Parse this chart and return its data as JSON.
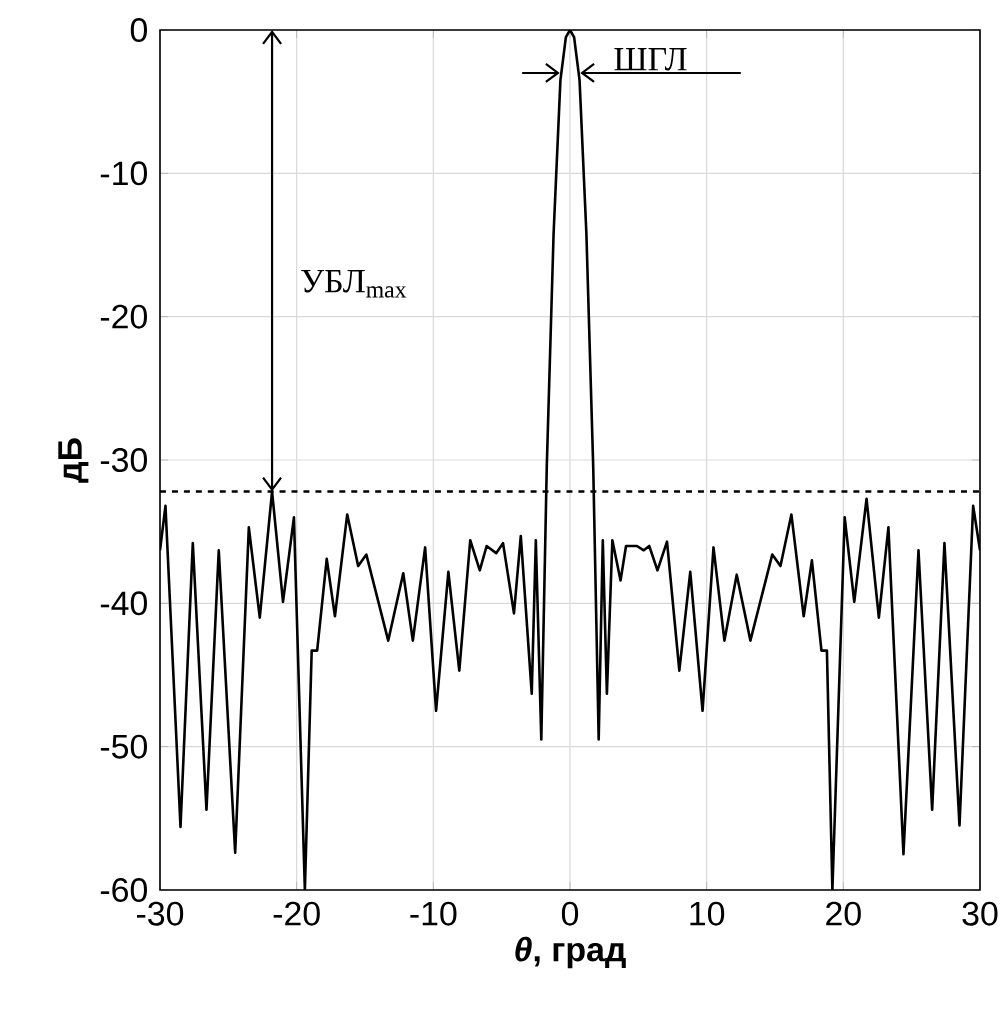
{
  "chart_data": {
    "type": "line",
    "xlabel": "*θ*, град",
    "ylabel": "дБ",
    "xlim": [
      -30,
      30
    ],
    "ylim": [
      -60,
      0
    ],
    "xticks": [
      -30,
      -20,
      -10,
      0,
      10,
      20,
      30
    ],
    "yticks": [
      -60,
      -50,
      -40,
      -30,
      -20,
      -10,
      0
    ],
    "grid": true,
    "line_style": "solid",
    "marker": "none",
    "series": [
      {
        "color": "#000000",
        "x": [
          -30,
          -29.6,
          -28.5,
          -27.6,
          -26.6,
          -25.7,
          -24.5,
          -23.5,
          -22.7,
          -21.8,
          -21.0,
          -20.2,
          -19.4,
          -18.9,
          -18.5,
          -17.8,
          -17.2,
          -16.3,
          -15.5,
          -14.9,
          -13.3,
          -12.2,
          -11.5,
          -10.6,
          -9.8,
          -8.9,
          -8.1,
          -7.3,
          -6.6,
          -6.1,
          -5.4,
          -4.9,
          -4.1,
          -3.6,
          -2.8,
          -2.5,
          -2.1,
          -1.7,
          -1.2,
          -0.7,
          -0.3,
          0,
          0.3,
          0.7,
          1.2,
          1.7,
          2.1,
          2.4,
          2.7,
          3.1,
          3.7,
          4.1,
          4.9,
          5.4,
          5.8,
          6.4,
          7.1,
          8.0,
          8.8,
          9.7,
          10.5,
          11.3,
          12.2,
          13.2,
          14.8,
          15.4,
          16.2,
          17.1,
          17.7,
          18.4,
          18.8,
          19.2,
          20.1,
          20.8,
          21.7,
          22.6,
          23.3,
          24.4,
          25.5,
          26.5,
          27.4,
          28.5,
          29.5,
          30
        ],
        "values": [
          -36.3,
          -33.2,
          -55.6,
          -35.8,
          -54.4,
          -36.3,
          -57.4,
          -34.7,
          -41.0,
          -32.2,
          -39.9,
          -34.0,
          -60,
          -43.3,
          -43.3,
          -36.9,
          -40.9,
          -33.8,
          -37.4,
          -36.6,
          -42.6,
          -37.9,
          -42.6,
          -36.1,
          -47.5,
          -37.8,
          -44.7,
          -35.6,
          -37.7,
          -36.0,
          -36.5,
          -35.8,
          -40.7,
          -35.3,
          -46.3,
          -35.6,
          -49.5,
          -30.5,
          -14.2,
          -3.5,
          -0.5,
          0,
          -0.5,
          -3.5,
          -14.2,
          -30.5,
          -49.5,
          -35.6,
          -46.3,
          -35.6,
          -38.4,
          -36.0,
          -36.0,
          -36.3,
          -36.0,
          -37.7,
          -35.7,
          -44.7,
          -37.8,
          -47.5,
          -36.1,
          -42.6,
          -38.0,
          -42.6,
          -36.6,
          -37.4,
          -33.8,
          -40.9,
          -37.0,
          -43.3,
          -43.3,
          -60,
          -34.0,
          -39.9,
          -32.7,
          -41.0,
          -34.7,
          -57.5,
          -36.3,
          -54.4,
          -35.8,
          -55.5,
          -33.2,
          -36.3
        ]
      }
    ],
    "ref_lines": [
      {
        "axis": "y",
        "value": -32.2,
        "color": "#000000",
        "line_style": "dashed"
      }
    ],
    "annotations": [
      "УБЛ$_{max}$",
      {
        "text": "ШГЛ",
        "x": 0,
        "y": -3
      }
    ]
  }
}
